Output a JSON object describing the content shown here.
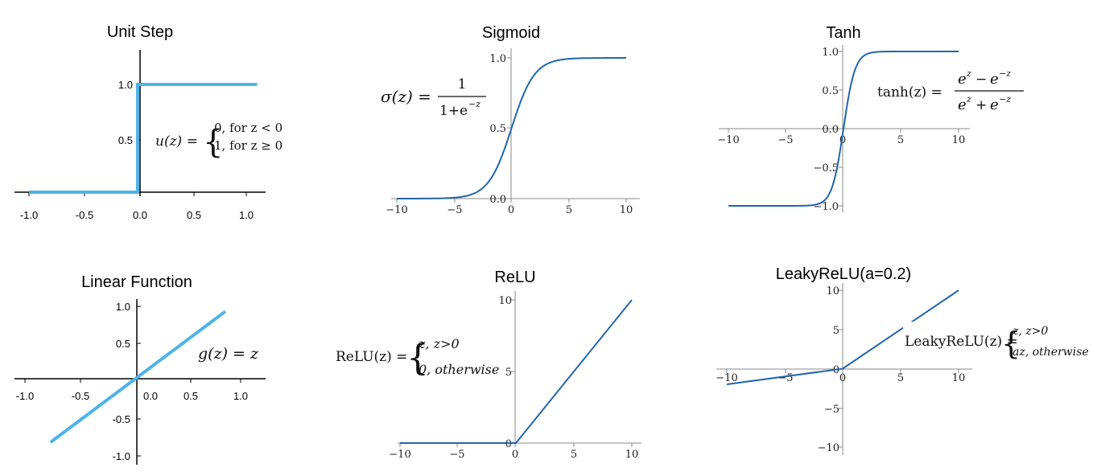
{
  "colors": {
    "light_blue": "#4FB3E8",
    "dark_blue": "#2166AC",
    "axis": "#000000"
  },
  "chart_data": [
    {
      "id": "unit-step",
      "type": "line",
      "title": "Unit Step",
      "xticks": [
        "-1.0",
        "-0.5",
        "0.0",
        "0.5",
        "1.0"
      ],
      "yticks": [
        "0.5",
        "1.0"
      ],
      "xlim": [
        -1.0,
        1.0
      ],
      "ylim": [
        0,
        1.0
      ],
      "series": [
        {
          "x": [
            -1.0,
            0.0,
            0.0,
            1.1
          ],
          "y": [
            0,
            0,
            1,
            1
          ]
        }
      ],
      "formula": {
        "lhs": "u(z) =",
        "case1": "0,   for  z < 0",
        "case2": "1,   for  z ≥ 0"
      }
    },
    {
      "id": "sigmoid",
      "type": "line",
      "title": "Sigmoid",
      "xticks": [
        "−10",
        "−5",
        "0",
        "5",
        "10"
      ],
      "yticks": [
        "0.0",
        "0.5",
        "1.0"
      ],
      "xlim": [
        -10,
        10
      ],
      "ylim": [
        0,
        1
      ],
      "function": "sigmoid",
      "formula": {
        "lhs": "σ(z) =",
        "numerator": "1",
        "denominator": "1+e",
        "exponent": "−z"
      }
    },
    {
      "id": "tanh",
      "type": "line",
      "title": "Tanh",
      "xticks": [
        "−10",
        "−5",
        "0",
        "5",
        "10"
      ],
      "yticks": [
        "−1.0",
        "−0.5",
        "0.0",
        "0.5",
        "1.0"
      ],
      "xlim": [
        -10,
        10
      ],
      "ylim": [
        -1,
        1
      ],
      "function": "tanh",
      "formula": {
        "lhs": "tanh(z) =",
        "numerator": "e^z − e^−z",
        "denominator": "e^z + e^−z"
      }
    },
    {
      "id": "linear",
      "type": "line",
      "title": "Linear Function",
      "xticks": [
        "-1.0",
        "-0.5",
        "0.0",
        "0.5",
        "1.0"
      ],
      "yticks": [
        "-1.0",
        "-0.5",
        "0.5",
        "1.0"
      ],
      "xlim": [
        -1.0,
        1.0
      ],
      "ylim": [
        -1.0,
        1.0
      ],
      "series": [
        {
          "x": [
            -0.8,
            0.82
          ],
          "y": [
            -0.85,
            0.9
          ]
        }
      ],
      "formula": {
        "text": "g(z) = z"
      }
    },
    {
      "id": "relu",
      "type": "line",
      "title": "ReLU",
      "xticks": [
        "−10",
        "−5",
        "0",
        "5",
        "10"
      ],
      "yticks": [
        "0",
        "5",
        "10"
      ],
      "xlim": [
        -10,
        10
      ],
      "ylim": [
        0,
        10
      ],
      "function": "relu",
      "formula": {
        "lhs": "ReLU(z) =",
        "case1": "z, z>0",
        "case2": "0, otherwise"
      }
    },
    {
      "id": "leaky-relu",
      "type": "line",
      "title": "LeakyReLU(a=0.2)",
      "xticks": [
        "−10",
        "−5",
        "0",
        "5",
        "10"
      ],
      "yticks": [
        "−10",
        "−5",
        "0",
        "5",
        "10"
      ],
      "xlim": [
        -10,
        10
      ],
      "ylim": [
        -10,
        10
      ],
      "function": "leaky_relu",
      "alpha": 0.2,
      "formula": {
        "lhs": "LeakyReLU(z) =",
        "case1": "z, z>0",
        "case2": "az, otherwise"
      }
    }
  ]
}
